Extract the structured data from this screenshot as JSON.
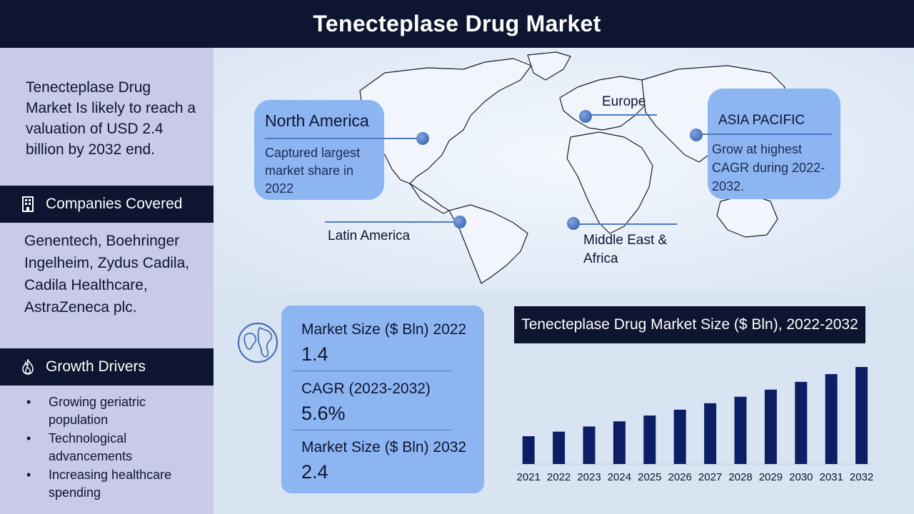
{
  "title": "Tenecteplase Drug Market",
  "summary": "Tenecteplase Drug Market Is likely to reach a valuation of USD 2.4 billion by 2032 end.",
  "companies": {
    "heading": "Companies Covered",
    "icon": "building-icon",
    "text": "Genentech, Boehringer Ingelheim, Zydus Cadila, Cadila Healthcare, AstraZeneca plc."
  },
  "drivers": {
    "heading": "Growth Drivers",
    "icon": "flame-icon",
    "items": [
      "Growing geriatric population",
      "Technological advancements",
      "Increasing healthcare spending"
    ]
  },
  "regions": {
    "north_america": {
      "name": "North America",
      "desc": "Captured largest market share in 2022"
    },
    "europe": {
      "name": "Europe"
    },
    "asia_pacific": {
      "name": "ASIA PACIFIC",
      "desc": "Grow at highest CAGR during 2022-2032."
    },
    "latin_america": {
      "name": "Latin America"
    },
    "mea": {
      "name": "Middle East & Africa"
    }
  },
  "stats": [
    {
      "label": "Market Size ($ Bln) 2022",
      "value": "1.4"
    },
    {
      "label": "CAGR (2023-2032)",
      "value": "5.6%"
    },
    {
      "label": "Market Size ($ Bln) 2032",
      "value": "2.4"
    }
  ],
  "colors": {
    "navy": "#0d1530",
    "panel": "#c9c9e8",
    "box": "#8db5f2",
    "bar": "#0c1f66",
    "background": "#d9e4f3"
  },
  "chart_data": {
    "type": "bar",
    "title": "Tenecteplase Drug Market Size ($ Bln), 2022-2032",
    "categories": [
      "2021",
      "2022",
      "2023",
      "2024",
      "2025",
      "2026",
      "2027",
      "2028",
      "2029",
      "2030",
      "2031",
      "2032"
    ],
    "values": [
      1.33,
      1.4,
      1.48,
      1.56,
      1.65,
      1.74,
      1.84,
      1.94,
      2.05,
      2.17,
      2.29,
      2.4
    ],
    "ylim": [
      0.9,
      2.5
    ],
    "grid": false,
    "legend": "none",
    "xlabel": "",
    "ylabel": ""
  }
}
